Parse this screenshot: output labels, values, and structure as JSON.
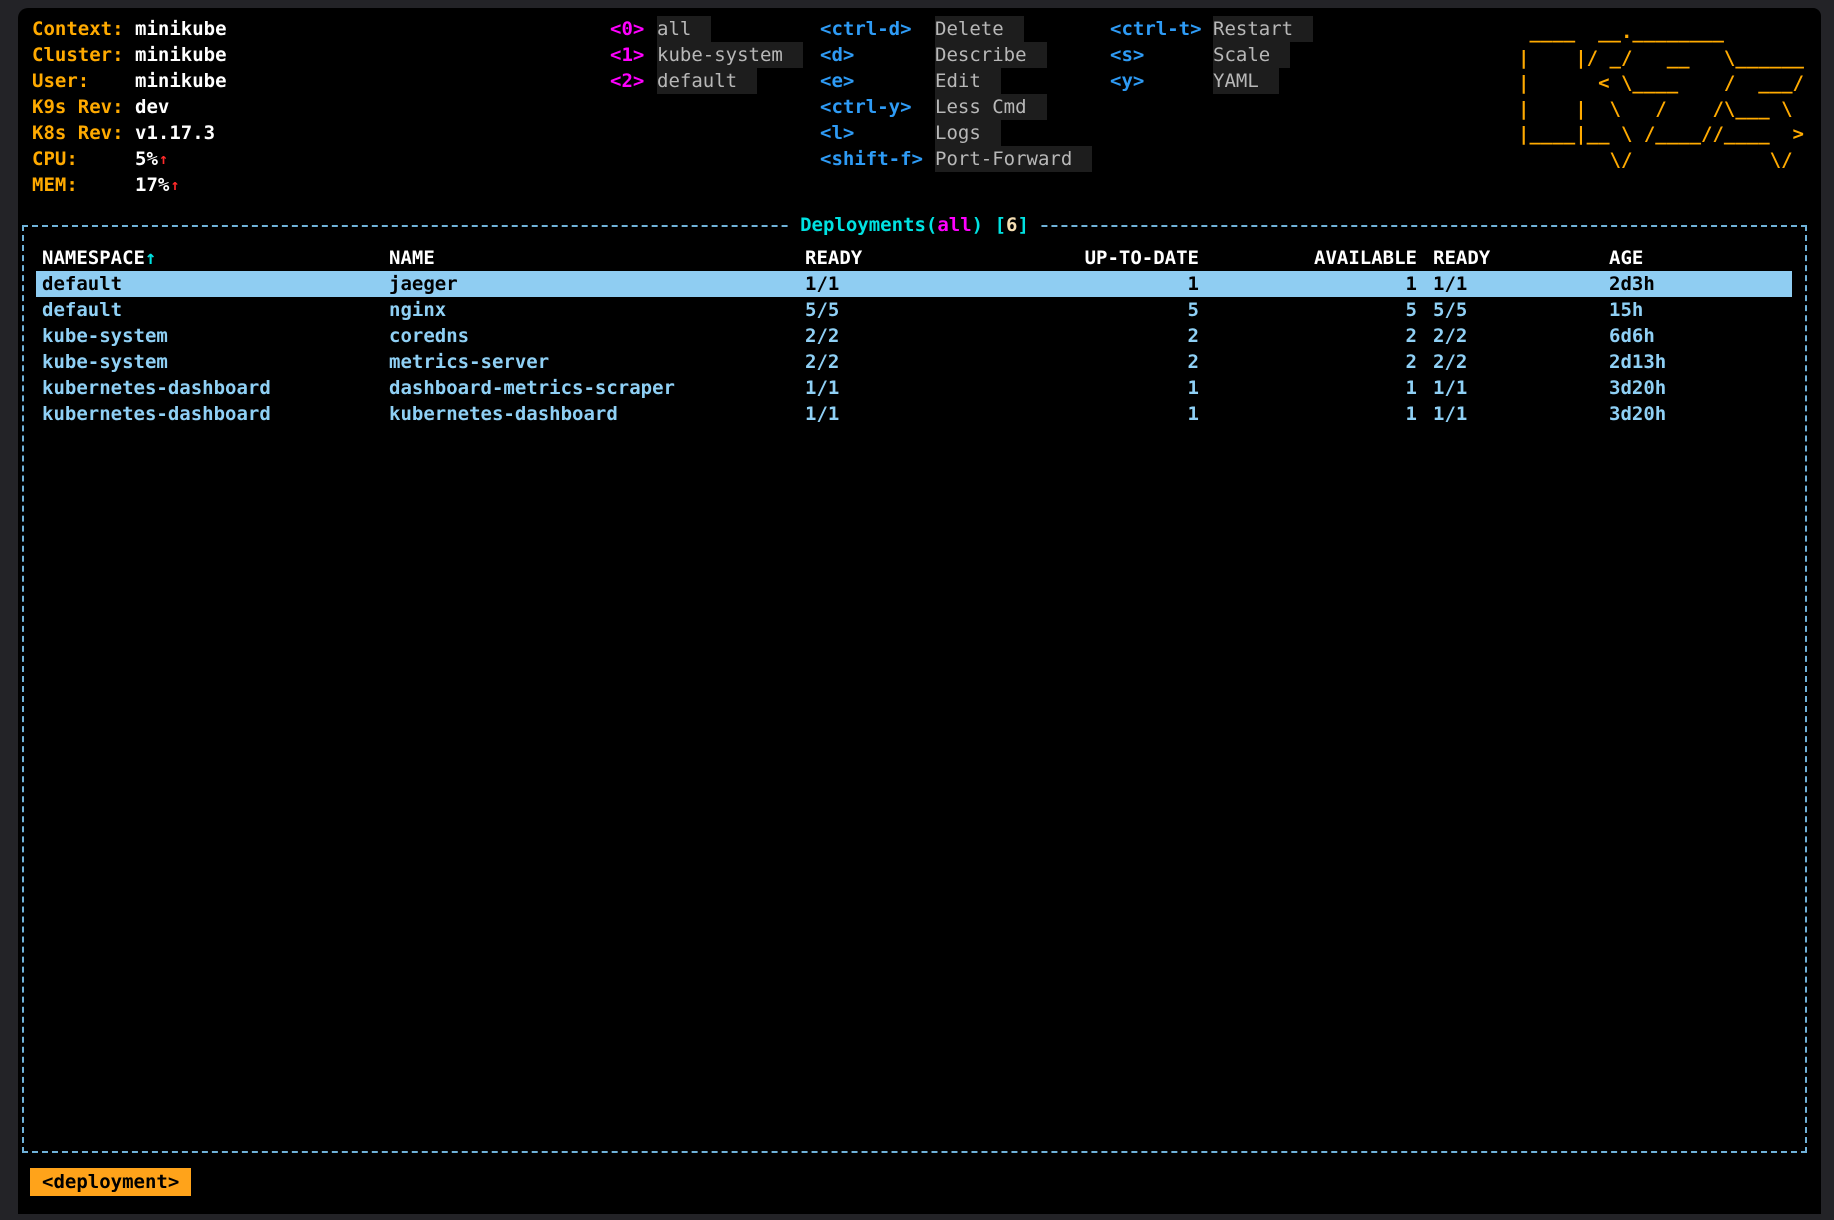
{
  "colors": {
    "frame_bg": "#232327",
    "terminal_bg": "#000000",
    "orange": "#ffaa00",
    "orange_badge": "#ffa31a",
    "white": "#ffffff",
    "magenta": "#ff00ff",
    "blue": "#2e9bf5",
    "cyan": "#00e2e2",
    "row_blue": "#8fd0f5",
    "selection_bg": "#8fcdf2",
    "border_blue": "#6fb1d8",
    "gray_text": "#b8b8b8",
    "chip_bg": "#1d1d1d",
    "red": "#ff2a2a",
    "count_cream": "#f5deb3"
  },
  "cluster_info": {
    "rows": [
      {
        "label": "Context:",
        "value": "minikube",
        "trend": ""
      },
      {
        "label": "Cluster:",
        "value": "minikube",
        "trend": ""
      },
      {
        "label": "User:",
        "value": "minikube",
        "trend": ""
      },
      {
        "label": "K9s Rev:",
        "value": "dev",
        "trend": ""
      },
      {
        "label": "K8s Rev:",
        "value": "v1.17.3",
        "trend": ""
      },
      {
        "label": "CPU:",
        "value": "5%",
        "trend": "↑"
      },
      {
        "label": "MEM:",
        "value": "17%",
        "trend": "↑"
      }
    ]
  },
  "namespace_hotkeys": [
    {
      "key": "<0>",
      "label": "all"
    },
    {
      "key": "<1>",
      "label": "kube-system"
    },
    {
      "key": "<2>",
      "label": "default"
    }
  ],
  "action_hotkeys_col1": [
    {
      "key": "<ctrl-d>",
      "label": "Delete"
    },
    {
      "key": "<d>",
      "label": "Describe"
    },
    {
      "key": "<e>",
      "label": "Edit"
    },
    {
      "key": "<ctrl-y>",
      "label": "Less Cmd"
    },
    {
      "key": "<l>",
      "label": "Logs"
    },
    {
      "key": "<shift-f>",
      "label": "Port-Forward"
    }
  ],
  "action_hotkeys_col2": [
    {
      "key": "<ctrl-t>",
      "label": "Restart"
    },
    {
      "key": "<s>",
      "label": "Scale"
    },
    {
      "key": "<y>",
      "label": "YAML"
    }
  ],
  "logo_lines": [
    " ____  __.________       ",
    "|    |/ _/   __   \\______",
    "|      < \\____    /  ___/",
    "|    |  \\   /    /\\___ \\ ",
    "|____|__ \\ /____//____  >",
    "        \\/            \\/ "
  ],
  "table": {
    "title": {
      "resource": "Deployments(",
      "namespace": "all",
      "close_paren": ") ",
      "open_bracket": "[",
      "count": "6",
      "close_bracket": "]"
    },
    "sort_arrow": "↑",
    "columns": [
      "NAMESPACE",
      "NAME",
      "READY",
      "UP-TO-DATE",
      "AVAILABLE",
      "READY",
      "AGE"
    ],
    "rows": [
      {
        "namespace": "default",
        "name": "jaeger",
        "ready": "1/1",
        "up_to_date": "1",
        "available": "1",
        "ready2": "1/1",
        "age": "2d3h",
        "selected": true
      },
      {
        "namespace": "default",
        "name": "nginx",
        "ready": "5/5",
        "up_to_date": "5",
        "available": "5",
        "ready2": "5/5",
        "age": "15h",
        "selected": false
      },
      {
        "namespace": "kube-system",
        "name": "coredns",
        "ready": "2/2",
        "up_to_date": "2",
        "available": "2",
        "ready2": "2/2",
        "age": "6d6h",
        "selected": false
      },
      {
        "namespace": "kube-system",
        "name": "metrics-server",
        "ready": "2/2",
        "up_to_date": "2",
        "available": "2",
        "ready2": "2/2",
        "age": "2d13h",
        "selected": false
      },
      {
        "namespace": "kubernetes-dashboard",
        "name": "dashboard-metrics-scraper",
        "ready": "1/1",
        "up_to_date": "1",
        "available": "1",
        "ready2": "1/1",
        "age": "3d20h",
        "selected": false
      },
      {
        "namespace": "kubernetes-dashboard",
        "name": "kubernetes-dashboard",
        "ready": "1/1",
        "up_to_date": "1",
        "available": "1",
        "ready2": "1/1",
        "age": "3d20h",
        "selected": false
      }
    ]
  },
  "crumbs": {
    "label": "<deployment>"
  }
}
